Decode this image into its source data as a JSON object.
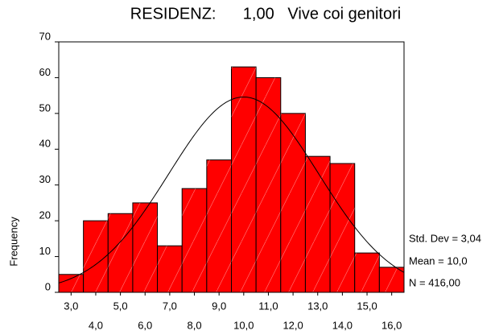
{
  "chart_data": {
    "type": "histogram",
    "title": "RESIDENZ:      1,00   Vive coi genitori",
    "ylabel": "Frequency",
    "bins": [
      2.5,
      3.5,
      4.5,
      5.5,
      6.5,
      7.5,
      8.5,
      9.5,
      10.5,
      11.5,
      12.5,
      13.5,
      14.5,
      15.5,
      16.5
    ],
    "values": [
      5,
      20,
      22,
      25,
      13,
      29,
      37,
      63,
      60,
      50,
      38,
      36,
      11,
      7
    ],
    "color": "#ff0000",
    "xlim": [
      2.5,
      16.5
    ],
    "xticks": [
      {
        "value": 3,
        "label": "3,0"
      },
      {
        "value": 4,
        "label": "4,0"
      },
      {
        "value": 5,
        "label": "5,0"
      },
      {
        "value": 6,
        "label": "6,0"
      },
      {
        "value": 7,
        "label": "7,0"
      },
      {
        "value": 8,
        "label": "8,0"
      },
      {
        "value": 9,
        "label": "9,0"
      },
      {
        "value": 10,
        "label": "10,0"
      },
      {
        "value": 11,
        "label": "11,0"
      },
      {
        "value": 12,
        "label": "12,0"
      },
      {
        "value": 13,
        "label": "13,0"
      },
      {
        "value": 14,
        "label": "14,0"
      },
      {
        "value": 15,
        "label": "15,0"
      },
      {
        "value": 16,
        "label": "16,0"
      }
    ],
    "ylim": [
      0,
      70
    ],
    "yticks": [
      0,
      10,
      20,
      30,
      40,
      50,
      60,
      70
    ],
    "normal_curve": true,
    "stats": {
      "std_dev": {
        "value": 3.04,
        "label": "Std. Dev = 3,04"
      },
      "mean": {
        "value": 10.0,
        "label": "Mean = 10,0"
      },
      "n": {
        "value": 416,
        "label": "N = 416,00"
      }
    }
  }
}
